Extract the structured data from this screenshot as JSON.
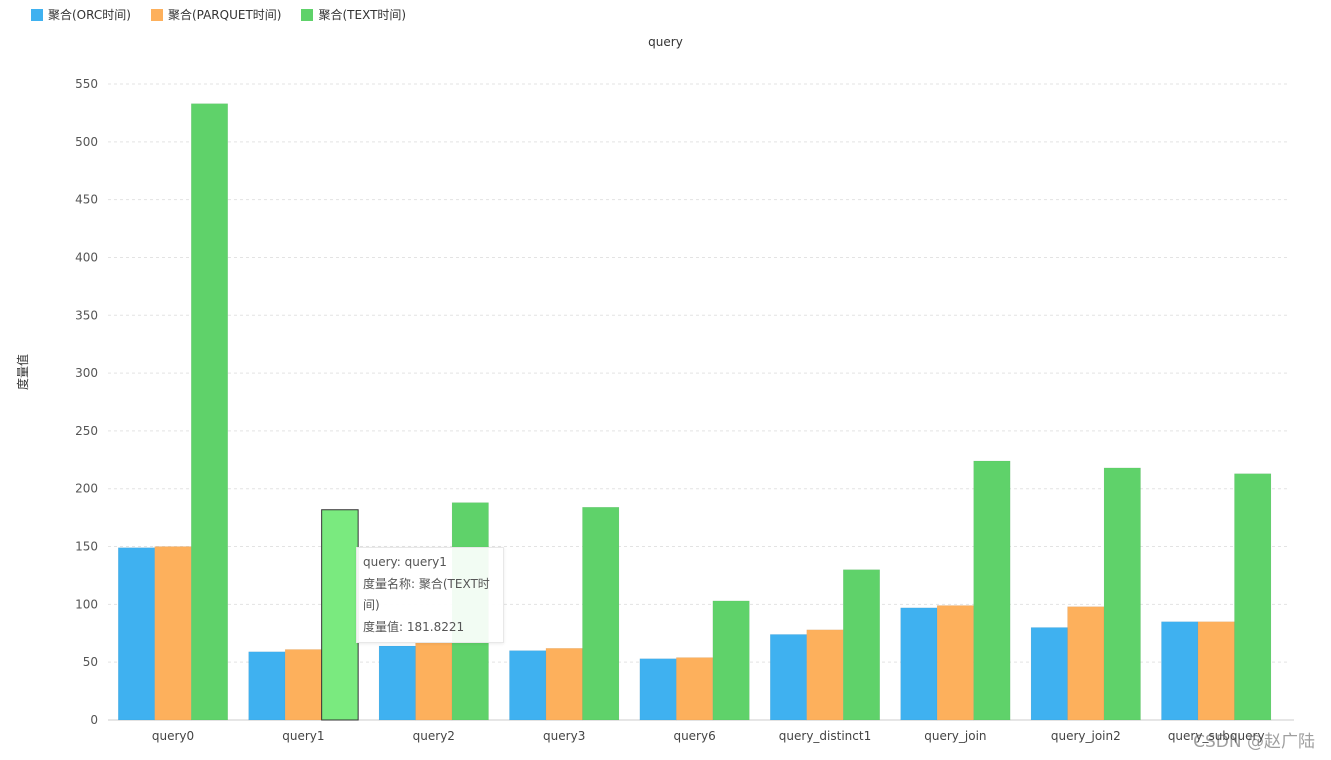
{
  "chart_data": {
    "type": "bar",
    "title": "query",
    "xlabel": "",
    "ylabel": "度量值",
    "ylim": [
      0,
      550
    ],
    "yticks": [
      0,
      50,
      100,
      150,
      200,
      250,
      300,
      350,
      400,
      450,
      500,
      550
    ],
    "grid": true,
    "legend_position": "top-left",
    "categories": [
      "query0",
      "query1",
      "query2",
      "query3",
      "query6",
      "query_distinct1",
      "query_join",
      "query_join2",
      "query_subquery"
    ],
    "series": [
      {
        "name": "聚合(ORC时间)",
        "color": "#3fb1f0",
        "values": [
          149,
          59,
          64,
          60,
          53,
          74,
          97,
          80,
          85
        ]
      },
      {
        "name": "聚合(PARQUET时间)",
        "color": "#fdb05c",
        "values": [
          150,
          61,
          67,
          62,
          54,
          78,
          99,
          98,
          85
        ]
      },
      {
        "name": "聚合(TEXT时间)",
        "color": "#5fd26a",
        "values": [
          533,
          181.8221,
          188,
          184,
          103,
          130,
          224,
          218,
          213
        ]
      }
    ],
    "highlight": {
      "series_index": 2,
      "category_index": 1,
      "color": "#7aea7f"
    }
  },
  "tooltip": {
    "line1": "query: query1",
    "line2": "度量名称: 聚合(TEXT时间)",
    "line3": "度量值: 181.8221"
  },
  "watermark": "CSDN @赵广陆"
}
